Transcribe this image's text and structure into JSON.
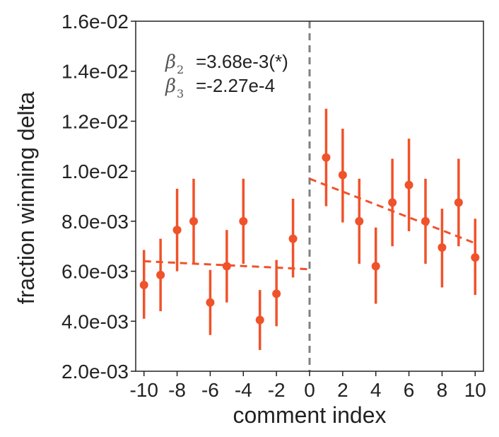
{
  "chart_data": {
    "type": "scatter",
    "xlabel": "comment index",
    "ylabel": "fraction winning delta",
    "xlim": [
      -10.5,
      10.5
    ],
    "ylim": [
      0.002,
      0.016
    ],
    "xticks": [
      -10,
      -8,
      -6,
      -4,
      -2,
      0,
      2,
      4,
      6,
      8,
      10
    ],
    "xtick_labels": [
      "-10",
      "-8",
      "-6",
      "-4",
      "-2",
      "0",
      "2",
      "4",
      "6",
      "8",
      "10"
    ],
    "yticks": [
      0.002,
      0.004,
      0.006,
      0.008,
      0.01,
      0.012,
      0.014,
      0.016
    ],
    "ytick_labels": [
      "2.0e-03",
      "4.0e-03",
      "6.0e-03",
      "8.0e-03",
      "1.0e-02",
      "1.2e-02",
      "1.4e-02",
      "1.6e-02"
    ],
    "grid": false,
    "color": "#f0522a",
    "vline_color": "#808080",
    "series": [
      {
        "x": [
          -10,
          -9,
          -8,
          -7,
          -6,
          -5,
          -4,
          -3,
          -2,
          -1,
          1,
          2,
          3,
          4,
          5,
          6,
          7,
          8,
          9,
          10
        ],
        "y": [
          0.00545,
          0.00585,
          0.00765,
          0.008,
          0.00475,
          0.0062,
          0.008,
          0.00405,
          0.0051,
          0.0073,
          0.01055,
          0.00985,
          0.008,
          0.0062,
          0.00875,
          0.00945,
          0.008,
          0.00695,
          0.00875,
          0.00655
        ],
        "y_low": [
          0.0041,
          0.0044,
          0.006,
          0.0063,
          0.00345,
          0.00475,
          0.0063,
          0.00285,
          0.0038,
          0.00575,
          0.0086,
          0.00795,
          0.0063,
          0.0047,
          0.007,
          0.0076,
          0.0063,
          0.00535,
          0.007,
          0.00505
        ],
        "y_high": [
          0.00685,
          0.0073,
          0.0093,
          0.0097,
          0.00605,
          0.00765,
          0.0097,
          0.00525,
          0.00645,
          0.0089,
          0.0125,
          0.0117,
          0.0097,
          0.00775,
          0.0105,
          0.0113,
          0.0097,
          0.0085,
          0.0105,
          0.0081
        ]
      }
    ],
    "fit_lines": [
      {
        "x": [
          -10,
          0
        ],
        "y": [
          0.0064,
          0.00608
        ]
      },
      {
        "x": [
          0,
          10
        ],
        "y": [
          0.0097,
          0.00712
        ]
      }
    ],
    "vline_x": 0,
    "annotations": [
      {
        "symbol": "β",
        "sub": "2",
        "text": "=3.68e-3(*)"
      },
      {
        "symbol": "β",
        "sub": "3",
        "text": "=-2.27e-4"
      }
    ]
  }
}
